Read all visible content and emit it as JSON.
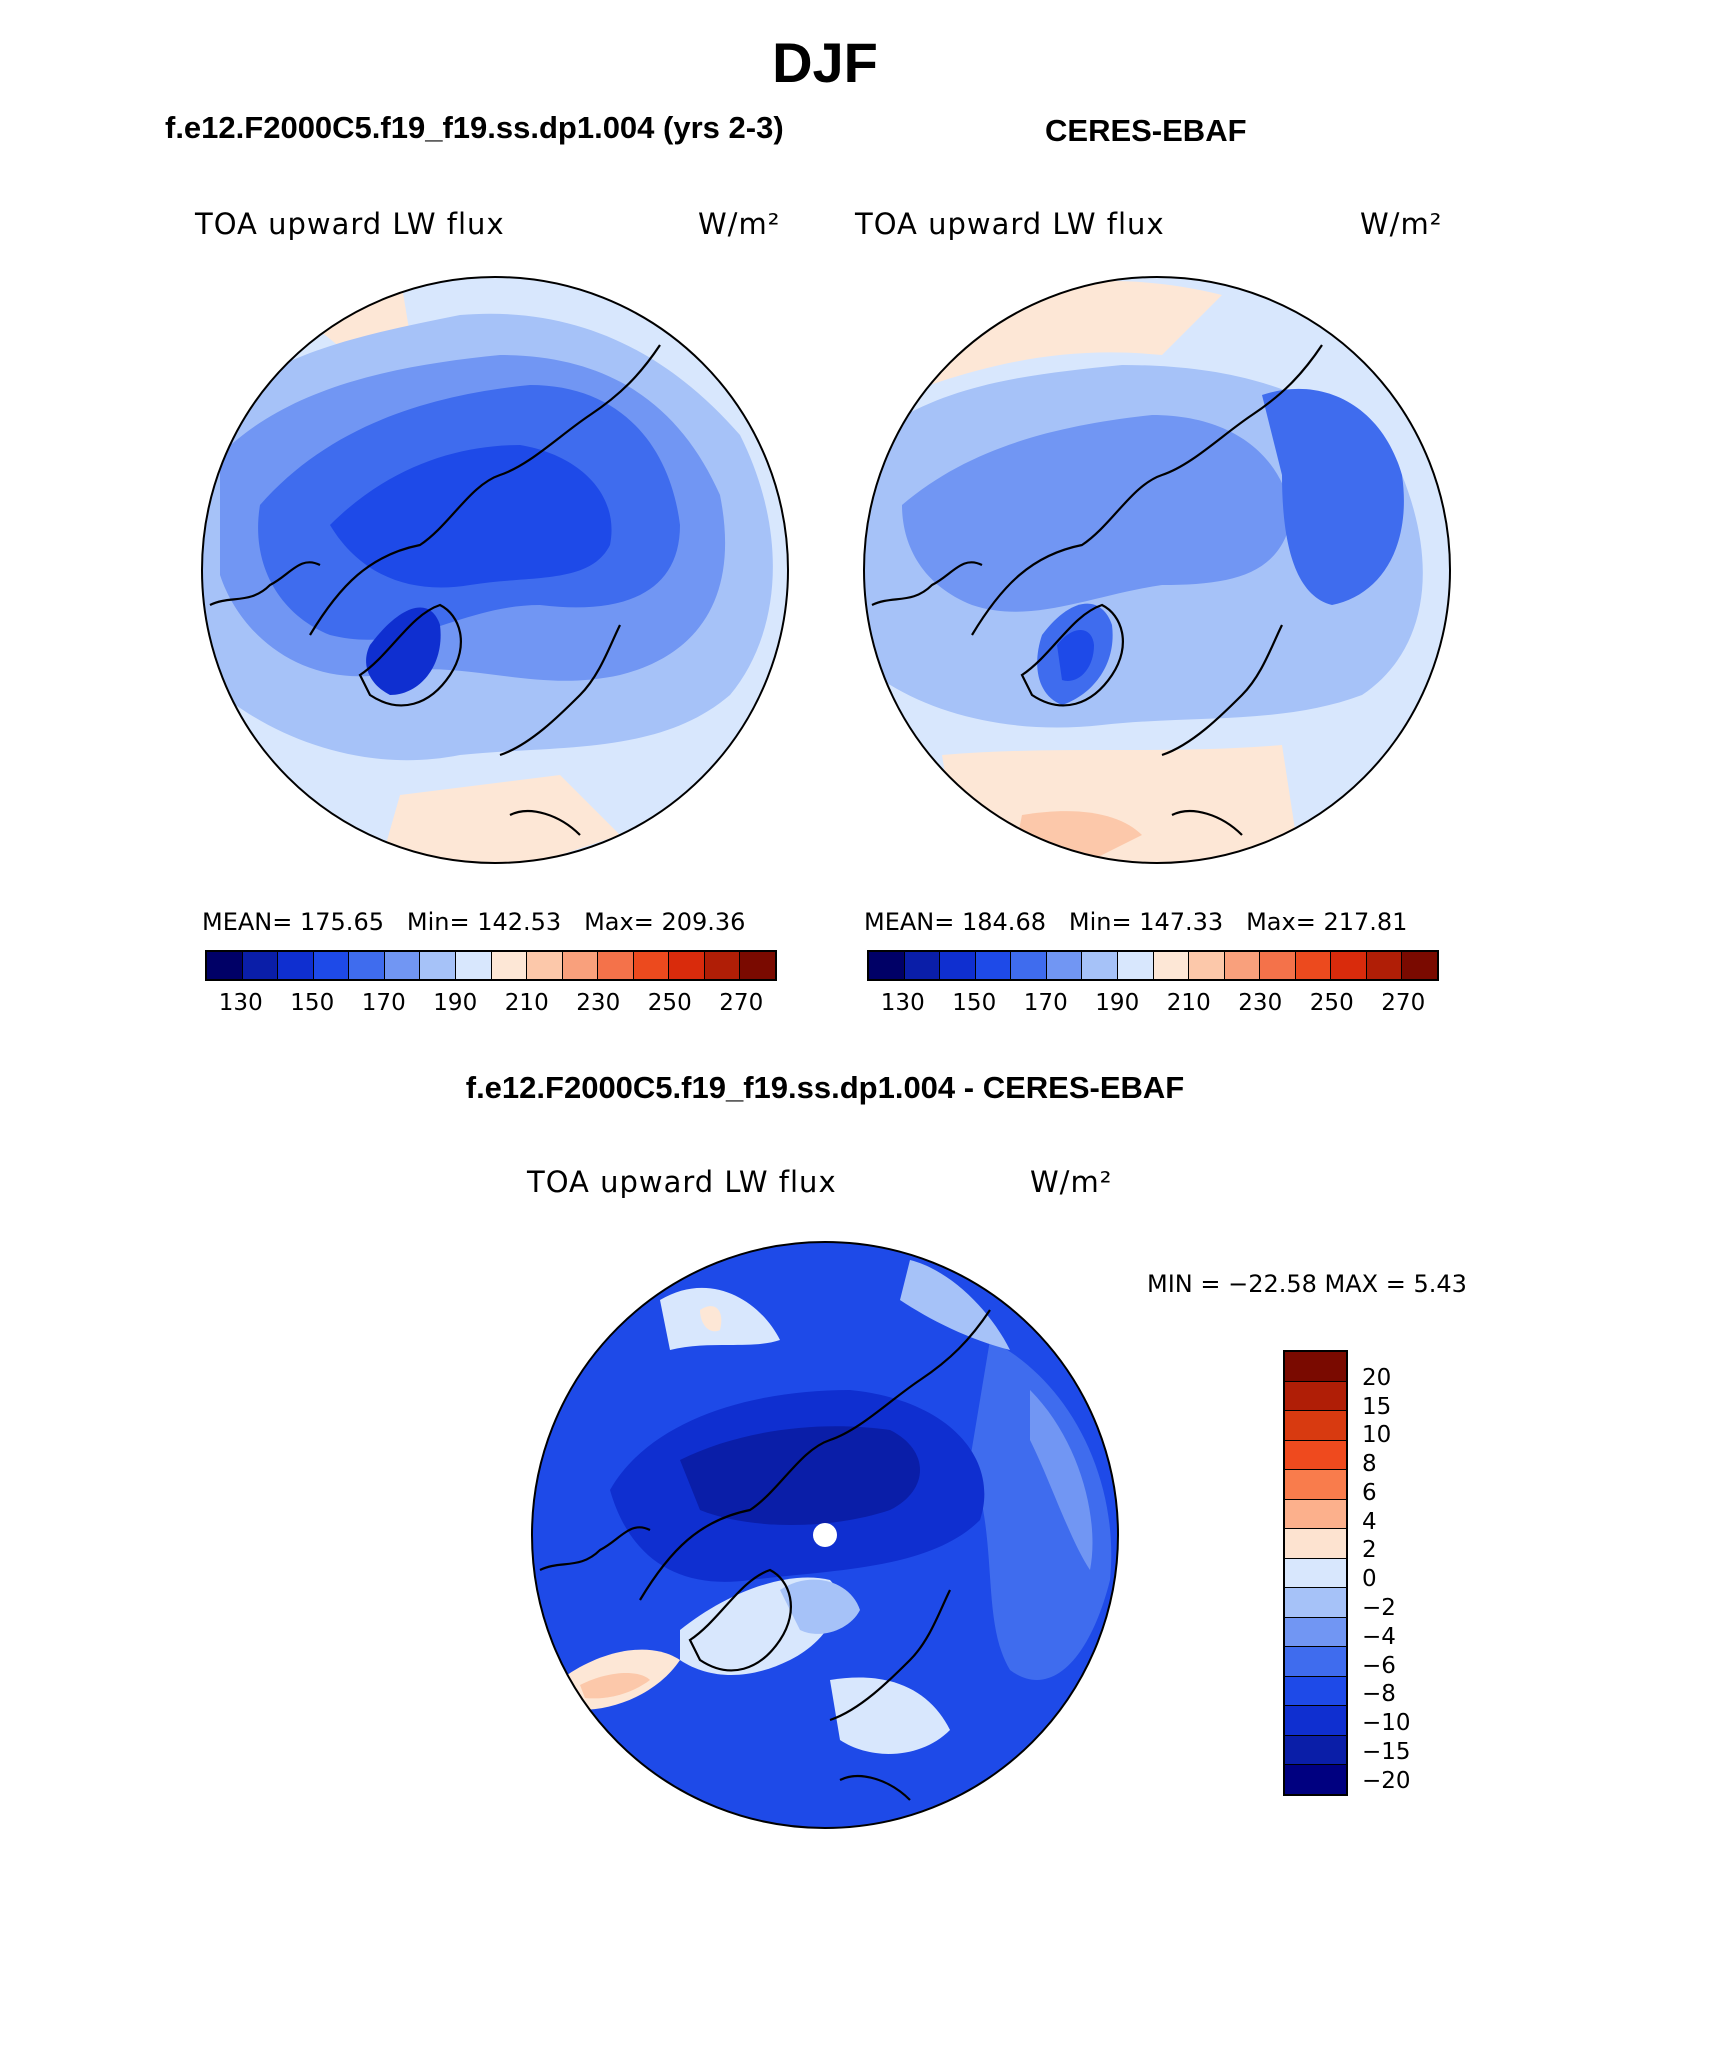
{
  "title": "DJF",
  "panels": {
    "model": {
      "title": "f.e12.F2000C5.f19_f19.ss.dp1.004 (yrs 2-3)",
      "variable": "TOA upward LW flux",
      "units": "W/m²",
      "stats": {
        "mean_label": "MEAN=",
        "mean": "175.65",
        "min_label": "Min=",
        "min": "142.53",
        "max_label": "Max=",
        "max": "209.36"
      }
    },
    "obs": {
      "title": "CERES-EBAF",
      "variable": "TOA upward LW flux",
      "units": "W/m²",
      "stats": {
        "mean_label": "MEAN=",
        "mean": "184.68",
        "min_label": "Min=",
        "min": "147.33",
        "max_label": "Max=",
        "max": "217.81"
      }
    },
    "diff": {
      "title": "f.e12.F2000C5.f19_f19.ss.dp1.004 - CERES-EBAF",
      "variable": "TOA upward LW flux",
      "units": "W/m²",
      "minmax": "MIN = −22.58 MAX =    5.43"
    }
  },
  "abs_colorbar": {
    "colors": [
      "#000066",
      "#0a1ea8",
      "#0f2fd0",
      "#1e4ae8",
      "#3f6cee",
      "#7196f3",
      "#a6c2f8",
      "#d8e7fd",
      "#fde7d6",
      "#fcc8aa",
      "#f9a07c",
      "#f4724a",
      "#ec4a1e",
      "#d92b0c",
      "#b01e06",
      "#7a0a00"
    ],
    "ticks": [
      "130",
      "150",
      "170",
      "190",
      "210",
      "230",
      "250",
      "270"
    ]
  },
  "diff_colorbar": {
    "colors": [
      "#7a0a00",
      "#b01e06",
      "#d83a10",
      "#ef4a1e",
      "#f97c4c",
      "#fcb08c",
      "#fde3d0",
      "#d8e7fd",
      "#a6c2f8",
      "#7196f3",
      "#3f6cee",
      "#1e4ae8",
      "#0f2fd0",
      "#0a1ea8",
      "#000080"
    ],
    "ticks": [
      "20",
      "15",
      "10",
      "8",
      "6",
      "4",
      "2",
      "0",
      "−2",
      "−4",
      "−6",
      "−8",
      "−10",
      "−15",
      "−20"
    ]
  },
  "map_fills": {
    "light": "#d8e7fd",
    "pale": "#a6c2f8",
    "mid": "#7196f3",
    "strong": "#3f6cee",
    "deep": "#1e4ae8",
    "deeper": "#0f2fd0",
    "darkest": "#0a1ea8",
    "warm": "#fde7d6",
    "warm2": "#fcc8aa"
  }
}
